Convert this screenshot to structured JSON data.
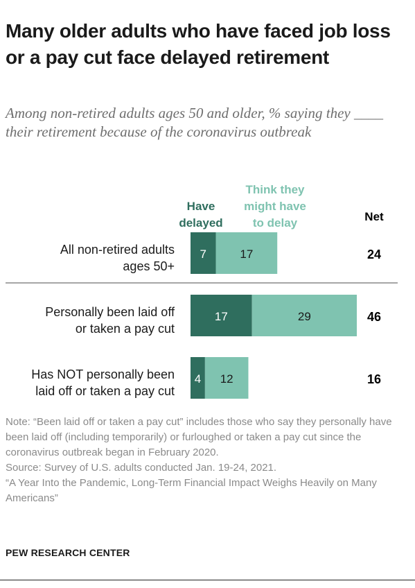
{
  "header": {
    "title": "Many older adults who have faced job loss or a pay cut face delayed retirement",
    "subtitle": "Among non-retired adults ages 50 and older, % saying they ____ their retirement because of the coronavirus outbreak"
  },
  "chart_data": {
    "type": "bar",
    "orientation": "horizontal",
    "stacked": true,
    "series_headers": {
      "have_delayed": [
        "Have",
        "delayed"
      ],
      "might_delay": [
        "Think they",
        "might have",
        "to delay"
      ],
      "net": "Net"
    },
    "categories": [
      [
        "All non-retired adults",
        "ages 50+"
      ],
      [
        "Personally been laid off",
        "or taken a pay cut"
      ],
      [
        "Has NOT personally been",
        "laid off or taken a pay cut"
      ]
    ],
    "series": [
      {
        "name": "Have delayed",
        "values": [
          7,
          17,
          4
        ],
        "color": "#2f6e5e"
      },
      {
        "name": "Think they might have to delay",
        "values": [
          17,
          29,
          12
        ],
        "color": "#7fc3b0"
      }
    ],
    "net": [
      "24",
      "46",
      "16"
    ],
    "xlim": [
      0,
      46
    ],
    "grid": false,
    "colors": {
      "dark": "#2f6e5e",
      "light": "#7fc3b0",
      "divider": "#888888"
    }
  },
  "footer": {
    "note": "Note: “Been laid off or taken a pay cut” includes those who say they personally have been laid off (including temporarily) or furloughed or taken a pay cut since the coronavirus outbreak began in February 2020.",
    "source": "Source: Survey of U.S. adults conducted Jan. 19-24, 2021.",
    "report": "“A Year Into the Pandemic, Long-Term Financial Impact Weighs Heavily on Many Americans”",
    "brand": "PEW RESEARCH CENTER"
  }
}
